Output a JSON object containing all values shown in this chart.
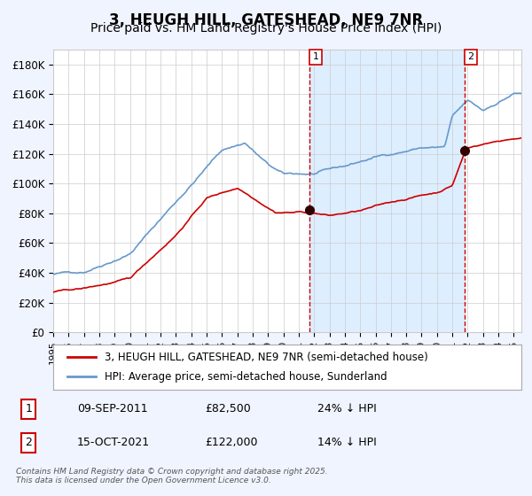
{
  "title": "3, HEUGH HILL, GATESHEAD, NE9 7NR",
  "subtitle": "Price paid vs. HM Land Registry's House Price Index (HPI)",
  "ylabel_ticks": [
    "£0",
    "£20K",
    "£40K",
    "£60K",
    "£80K",
    "£100K",
    "£120K",
    "£140K",
    "£160K",
    "£180K"
  ],
  "ytick_values": [
    0,
    20000,
    40000,
    60000,
    80000,
    100000,
    120000,
    140000,
    160000,
    180000
  ],
  "ylim": [
    0,
    190000
  ],
  "xlim_start": 1995.0,
  "xlim_end": 2025.5,
  "red_line_color": "#cc0000",
  "blue_line_color": "#6699cc",
  "shade_color": "#ddeeff",
  "vline_color": "#cc0000",
  "marker_color": "#330000",
  "purchase1_year": 2011.69,
  "purchase1_price": 82500,
  "purchase2_year": 2021.79,
  "purchase2_price": 122000,
  "legend_label_red": "3, HEUGH HILL, GATESHEAD, NE9 7NR (semi-detached house)",
  "legend_label_blue": "HPI: Average price, semi-detached house, Sunderland",
  "table_row1": [
    "1",
    "09-SEP-2011",
    "£82,500",
    "24% ↓ HPI"
  ],
  "table_row2": [
    "2",
    "15-OCT-2021",
    "£122,000",
    "14% ↓ HPI"
  ],
  "footer": "Contains HM Land Registry data © Crown copyright and database right 2025.\nThis data is licensed under the Open Government Licence v3.0.",
  "background_color": "#f0f4ff",
  "plot_bg_color": "#ffffff",
  "grid_color": "#cccccc",
  "title_fontsize": 12,
  "subtitle_fontsize": 10,
  "tick_fontsize": 8.5,
  "legend_fontsize": 8.5
}
